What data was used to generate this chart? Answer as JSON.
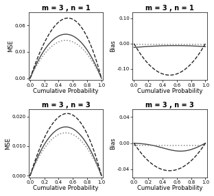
{
  "panels": [
    {
      "title": "m = 3 , n = 1",
      "ylabel": "MSE",
      "xlabel": "Cumulative Probability",
      "ylim": [
        -0.002,
        0.075
      ],
      "yticks": [
        0.0,
        0.03,
        0.06
      ],
      "yticklabels": [
        "0.00",
        "0.03",
        "0.06"
      ],
      "type": "mse",
      "n": 1
    },
    {
      "title": "m = 3 , n = 1",
      "ylabel": "Bias",
      "xlabel": "Cumulative Probability",
      "ylim": [
        -0.145,
        0.125
      ],
      "yticks": [
        -0.1,
        0.0,
        0.1
      ],
      "yticklabels": [
        "-0.10",
        "0.00",
        "0.10"
      ],
      "type": "bias",
      "n": 1
    },
    {
      "title": "m = 3 , n = 3",
      "ylabel": "MSE",
      "xlabel": "Cumulative Probability",
      "ylim": [
        -0.0005,
        0.0225
      ],
      "yticks": [
        0.0,
        0.01,
        0.02
      ],
      "yticklabels": [
        "0.000",
        "0.010",
        "0.020"
      ],
      "type": "mse",
      "n": 3
    },
    {
      "title": "m = 3 , n = 3",
      "ylabel": "Bias",
      "xlabel": "Cumulative Probability",
      "ylim": [
        -0.052,
        0.052
      ],
      "yticks": [
        -0.04,
        0.0,
        0.04
      ],
      "yticklabels": [
        "-0.04",
        "0.00",
        "0.04"
      ],
      "type": "bias",
      "n": 3
    }
  ],
  "mse_curves": {
    "n1": {
      "solid": {
        "amplitude": 0.05,
        "peak_shift": 0.0
      },
      "dotted": {
        "amplitude": 0.043,
        "peak_shift": 0.0
      },
      "dashed": {
        "amplitude": 0.068,
        "peak_shift": 0.12
      }
    },
    "n3": {
      "solid": {
        "amplitude": 0.0165,
        "peak_shift": 0.0
      },
      "dotted": {
        "amplitude": 0.0145,
        "peak_shift": 0.0
      },
      "dashed": {
        "amplitude": 0.021,
        "peak_shift": 0.08
      }
    }
  },
  "bias_curves": {
    "n1": {
      "solid_amp": -0.018,
      "dotted_amp": -0.005,
      "dashed_amp": -0.125
    },
    "n3": {
      "solid_amp": -0.01,
      "dotted_amp": -0.003,
      "dashed_amp": -0.042
    }
  },
  "line_styles": [
    {
      "ls": "-",
      "color": "#444444",
      "lw": 1.0
    },
    {
      "ls": ":",
      "color": "#888888",
      "lw": 1.1
    },
    {
      "ls": "--",
      "color": "#222222",
      "lw": 1.0
    }
  ],
  "xticks": [
    0.0,
    0.2,
    0.4,
    0.6,
    0.8,
    1.0
  ],
  "xticklabels": [
    "0.0",
    "0.2",
    "0.4",
    "0.6",
    "0.8",
    "1.0"
  ],
  "xlim": [
    -0.02,
    1.02
  ]
}
